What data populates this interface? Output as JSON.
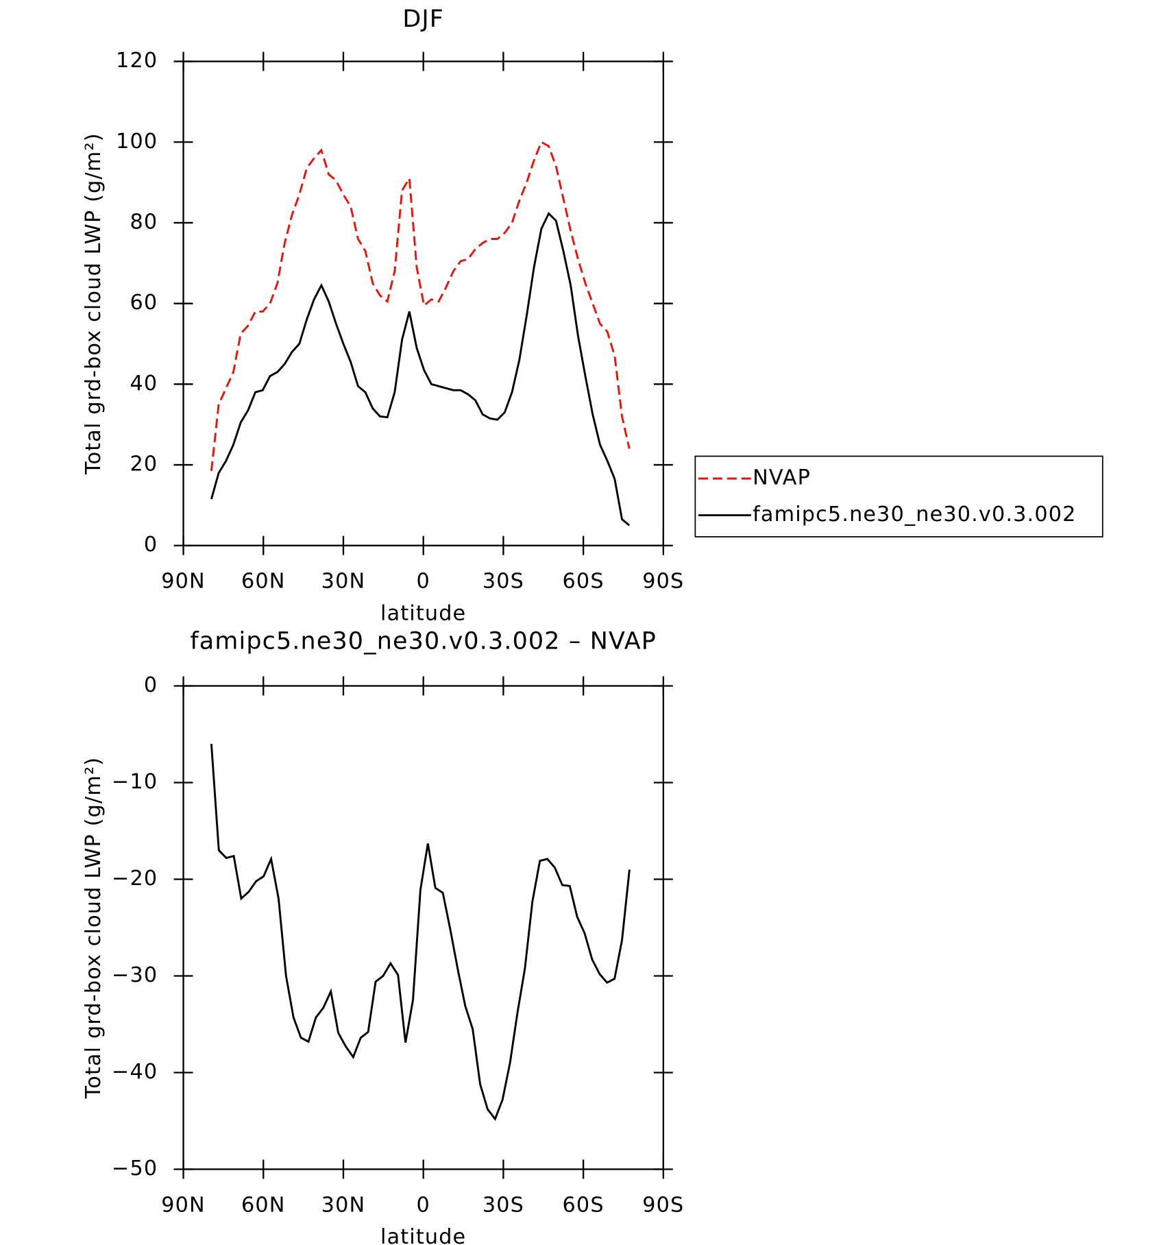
{
  "chart_data": [
    {
      "type": "line",
      "title": "DJF",
      "xlabel": "latitude",
      "ylabel": "Total grd-box cloud LWP (g/m²)",
      "x": [
        79.5,
        76.75,
        74,
        71.25,
        68.5,
        65.75,
        63,
        60.25,
        57.5,
        54.75,
        52,
        49.25,
        46.5,
        43.75,
        41,
        38.25,
        35.5,
        32.75,
        30,
        27.25,
        24.5,
        21.75,
        19,
        16.25,
        13.5,
        10.75,
        8,
        5.25,
        2.5,
        -0.25,
        -3,
        -5.75,
        -8.5,
        -11.25,
        -14,
        -16.75,
        -19.5,
        -22.25,
        -25,
        -27.75,
        -30.5,
        -33.25,
        -36,
        -38.75,
        -41.5,
        -44.25,
        -47,
        -49.75,
        -52.5,
        -55.25,
        -58,
        -60.75,
        -63.5,
        -66.25,
        -69,
        -71.75,
        -74.5,
        -77.25
      ],
      "series": [
        {
          "name": "NVAP",
          "color": "#e8140c",
          "dash": true,
          "values": [
            18.5,
            35,
            39,
            43,
            52.5,
            54.5,
            58,
            58,
            60,
            65,
            75,
            82,
            87,
            93.5,
            96,
            98,
            92,
            90.5,
            87,
            84,
            76,
            73,
            65,
            62,
            60.5,
            68,
            88,
            91,
            69,
            59.5,
            61,
            60.5,
            64,
            68,
            70.5,
            71,
            73.5,
            75,
            76,
            76,
            77.5,
            80,
            85.5,
            90,
            95.5,
            100,
            99,
            94,
            86,
            78,
            71,
            65,
            60,
            55,
            53,
            47,
            32,
            24
          ]
        },
        {
          "name": "famipc5.ne30_ne30.v0.3.002",
          "color": "#000000",
          "dash": false,
          "values": [
            11.5,
            18,
            21,
            25,
            30.5,
            33.5,
            38,
            38.5,
            42,
            43,
            45,
            48,
            50,
            56,
            61,
            64.5,
            60.5,
            55,
            50,
            45.5,
            39.5,
            38,
            34,
            32,
            31.8,
            38,
            51,
            58,
            49,
            43.5,
            40,
            39.5,
            39,
            38.5,
            38.5,
            37.5,
            36,
            32.5,
            31.5,
            31.2,
            33,
            38,
            46,
            57,
            69,
            78.5,
            82.3,
            80.5,
            73,
            64.5,
            52,
            42,
            32.5,
            25,
            21,
            16.5,
            6.5,
            5
          ]
        }
      ],
      "xlim": [
        90,
        -90
      ],
      "xticks": [
        {
          "value": 90,
          "label": "90N"
        },
        {
          "value": 60,
          "label": "60N"
        },
        {
          "value": 30,
          "label": "30N"
        },
        0,
        {
          "value": -30,
          "label": "30S"
        },
        {
          "value": -60,
          "label": "60S"
        },
        {
          "value": -90,
          "label": "90S"
        }
      ],
      "ylim": [
        0,
        120
      ],
      "yticks": [
        0,
        20,
        40,
        60,
        80,
        100,
        120
      ],
      "legend": "outside-right"
    },
    {
      "type": "line",
      "title": "famipc5.ne30_ne30.v0.3.002 – NVAP",
      "xlabel": "latitude",
      "ylabel": "Total grd-box cloud LWP (g/m²)",
      "x": [
        79.5,
        76.7,
        73.9,
        71.1,
        68.3,
        65.5,
        62.7,
        59.9,
        57.1,
        54.3,
        51.5,
        48.7,
        45.9,
        43.1,
        40.3,
        37.5,
        34.7,
        31.9,
        29.1,
        26.3,
        23.5,
        20.7,
        17.9,
        15.1,
        12.3,
        9.5,
        6.7,
        3.9,
        1.1,
        -1.7,
        -4.5,
        -7.3,
        -10.1,
        -12.9,
        -15.7,
        -18.5,
        -21.3,
        -24.1,
        -26.9,
        -29.7,
        -32.5,
        -35.3,
        -38.1,
        -40.9,
        -43.7,
        -46.5,
        -49.3,
        -52.1,
        -54.9,
        -57.7,
        -60.5,
        -63.3,
        -66.1,
        -68.9,
        -71.7,
        -74.5,
        -77.3
      ],
      "color": "#000000",
      "values": [
        -6,
        -17,
        -17.8,
        -17.6,
        -22,
        -21.3,
        -20.2,
        -19.7,
        -17.9,
        -22,
        -30,
        -34.3,
        -36.4,
        -36.8,
        -34.3,
        -33.3,
        -31.6,
        -35.9,
        -37.3,
        -38.4,
        -36.4,
        -35.8,
        -30.6,
        -30,
        -28.7,
        -29.9,
        -36.9,
        -32.5,
        -21.1,
        -16.3,
        -20.9,
        -21.4,
        -25.2,
        -29.3,
        -33.1,
        -35.5,
        -41.2,
        -43.8,
        -44.8,
        -42.8,
        -39,
        -33.8,
        -29.2,
        -22.3,
        -18.1,
        -17.9,
        -18.8,
        -20.6,
        -20.7,
        -23.9,
        -25.6,
        -28.3,
        -29.8,
        -30.7,
        -30.3,
        -26.3,
        -19
      ],
      "xlim": [
        90,
        -90
      ],
      "xticks": [
        {
          "value": 90,
          "label": "90N"
        },
        {
          "value": 60,
          "label": "60N"
        },
        {
          "value": 30,
          "label": "30N"
        },
        0,
        {
          "value": -30,
          "label": "30S"
        },
        {
          "value": -60,
          "label": "60S"
        },
        {
          "value": -90,
          "label": "90S"
        }
      ],
      "ylim": [
        -50,
        0
      ],
      "yticks": [
        {
          "value": -50,
          "label": "−50"
        },
        {
          "value": -40,
          "label": "−40"
        },
        {
          "value": -30,
          "label": "−30"
        },
        {
          "value": -20,
          "label": "−20"
        },
        {
          "value": -10,
          "label": "−10"
        },
        0
      ]
    }
  ]
}
